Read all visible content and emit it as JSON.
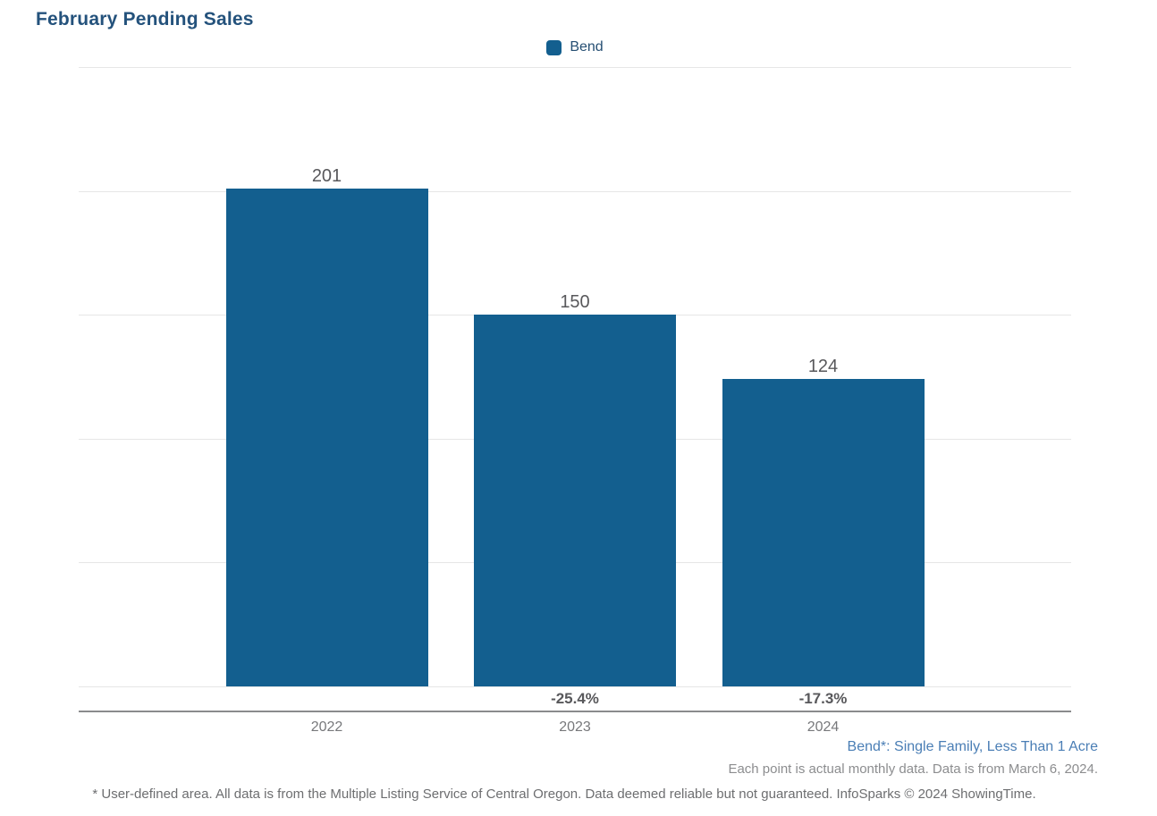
{
  "title": "February Pending Sales",
  "legend": {
    "label": "Bend",
    "swatch_color": "#135F8F"
  },
  "chart_data": {
    "type": "bar",
    "title": "February Pending Sales",
    "categories": [
      "2022",
      "2023",
      "2024"
    ],
    "values": [
      201,
      150,
      124
    ],
    "value_labels": [
      "201",
      "150",
      "124"
    ],
    "change_labels": [
      "",
      "-25.4%",
      "-17.3%"
    ],
    "series": [
      {
        "name": "Bend",
        "values": [
          201,
          150,
          124
        ]
      }
    ],
    "ylim": [
      0,
      250
    ],
    "yticks": [
      0,
      50,
      100,
      150,
      200,
      250
    ],
    "xlabel": "",
    "ylabel": "",
    "grid": "horizontal",
    "legend_position": "top-center",
    "bar_color": "#135F8F"
  },
  "colors": {
    "bar": "#135F8F",
    "title": "#24527C",
    "grid": "#E6E6E6",
    "axis_line": "#8A8B8D",
    "tick_text": "#77787B",
    "value_text": "#58585B",
    "series_note": "#4A7EB5"
  },
  "footnotes": {
    "series_definition": "Bend*: Single Family, Less Than 1 Acre",
    "data_note": "Each point is actual monthly data. Data is from March 6, 2024.",
    "disclaimer": "* User-defined area. All data is from the Multiple Listing Service of Central Oregon. Data deemed reliable but not guaranteed. InfoSparks © 2024 ShowingTime."
  }
}
